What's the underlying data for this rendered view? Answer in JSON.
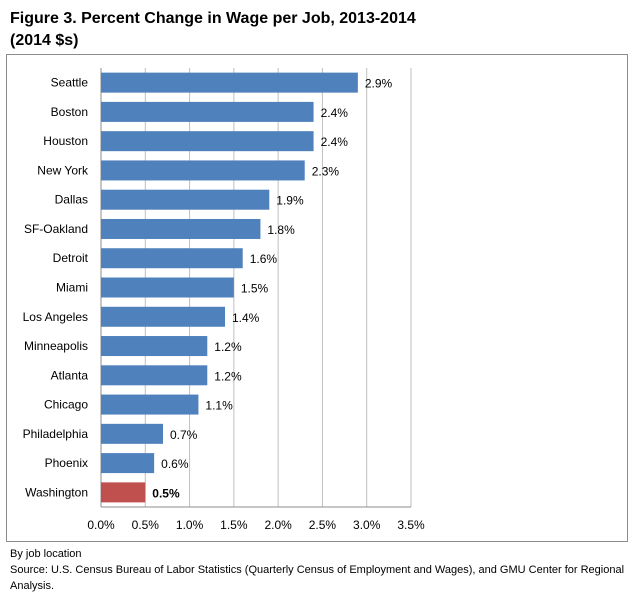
{
  "title": "Figure 3. Percent Change in Wage per Job, 2013-2014",
  "subtitle": "(2014 $s)",
  "chart_data": {
    "type": "bar",
    "orientation": "horizontal",
    "categories": [
      "Seattle",
      "Boston",
      "Houston",
      "New York",
      "Dallas",
      "SF-Oakland",
      "Detroit",
      "Miami",
      "Los Angeles",
      "Minneapolis",
      "Atlanta",
      "Chicago",
      "Philadelphia",
      "Phoenix",
      "Washington"
    ],
    "values": [
      2.9,
      2.4,
      2.4,
      2.3,
      1.9,
      1.8,
      1.6,
      1.5,
      1.4,
      1.2,
      1.2,
      1.1,
      0.7,
      0.6,
      0.5
    ],
    "labels": [
      "2.9%",
      "2.4%",
      "2.4%",
      "2.3%",
      "1.9%",
      "1.8%",
      "1.6%",
      "1.5%",
      "1.4%",
      "1.2%",
      "1.2%",
      "1.1%",
      "0.7%",
      "0.6%",
      "0.5%"
    ],
    "highlight": "Washington",
    "xlim": [
      0,
      3.5
    ],
    "xticks": [
      "0.0%",
      "0.5%",
      "1.0%",
      "1.5%",
      "2.0%",
      "2.5%",
      "3.0%",
      "3.5%"
    ],
    "xgrid": true,
    "colors": {
      "bar": "#4f81bd",
      "highlight": "#c0504d",
      "grid": "#bfbfbf"
    }
  },
  "notes": {
    "line1": "By job location",
    "line2": "Source: U.S. Census Bureau of Labor Statistics (Quarterly Census of Employment and Wages), and GMU Center for Regional Analysis."
  }
}
